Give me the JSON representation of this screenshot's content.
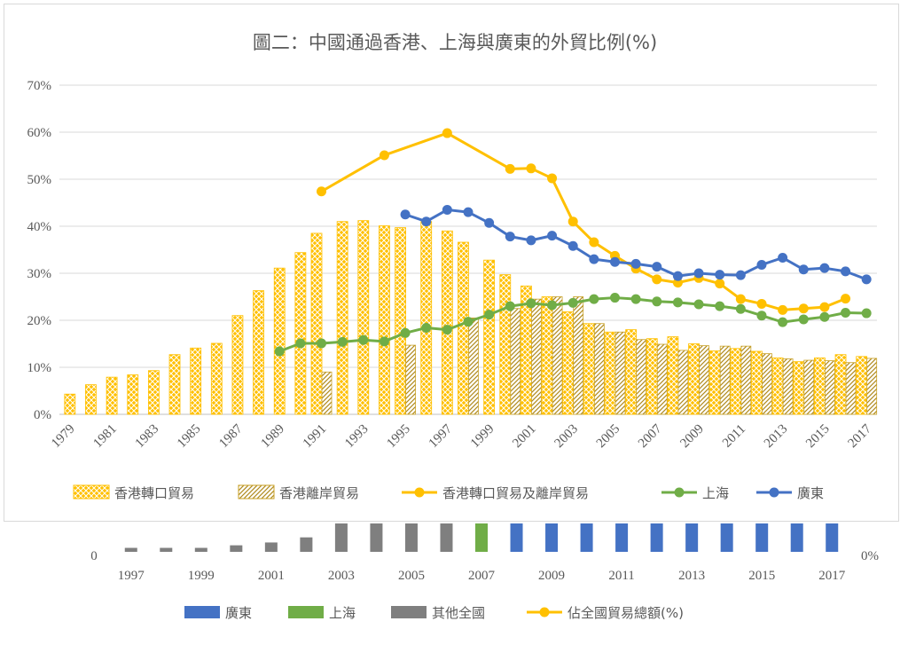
{
  "title": "圖二：中國通過香港、上海與廣東的外貿比例(%)",
  "chart_data": [
    {
      "type": "bar+line",
      "title": "圖二：中國通過香港、上海與廣東的外貿比例(%)",
      "ylim": [
        0,
        70
      ],
      "y_ticks": [
        "0%",
        "10%",
        "20%",
        "30%",
        "40%",
        "50%",
        "60%",
        "70%"
      ],
      "y_tick_values": [
        0,
        10,
        20,
        30,
        40,
        50,
        60,
        70
      ],
      "grid": true,
      "legend_position": "bottom",
      "categories": [
        1979,
        1980,
        1981,
        1982,
        1983,
        1984,
        1985,
        1986,
        1987,
        1988,
        1989,
        1990,
        1991,
        1992,
        1993,
        1994,
        1995,
        1996,
        1997,
        1998,
        1999,
        2000,
        2001,
        2002,
        2003,
        2004,
        2005,
        2006,
        2007,
        2008,
        2009,
        2010,
        2011,
        2012,
        2013,
        2014,
        2015,
        2016,
        2017
      ],
      "x_tick_labels": [
        "1979",
        "1981",
        "1983",
        "1985",
        "1987",
        "1989",
        "1991",
        "1993",
        "1995",
        "1997",
        "1999",
        "2001",
        "2003",
        "2005",
        "2007",
        "2009",
        "2011",
        "2013",
        "2015",
        "2017"
      ],
      "series": [
        {
          "name": "香港轉口貿易",
          "kind": "bar",
          "color": "#FFC000",
          "values": [
            4.3,
            6.3,
            7.9,
            8.4,
            9.3,
            12.7,
            14.1,
            15.1,
            21.0,
            26.3,
            31.1,
            34.4,
            38.5,
            41.0,
            41.2,
            40.1,
            39.7,
            41.0,
            39.0,
            36.6,
            32.8,
            29.7,
            27.3,
            25.0,
            21.8,
            19.3,
            17.5,
            18.0,
            16.1,
            16.5,
            15.0,
            13.5,
            14.0,
            13.4,
            12.0,
            11.2,
            12.0,
            12.7,
            12.3
          ]
        },
        {
          "name": "香港離岸貿易",
          "kind": "bar",
          "color": "#C9A227",
          "values": [
            null,
            null,
            null,
            null,
            null,
            null,
            null,
            null,
            null,
            null,
            null,
            null,
            9.0,
            null,
            null,
            null,
            14.7,
            null,
            null,
            20.5,
            null,
            22.5,
            24.5,
            25.0,
            25.0,
            19.3,
            17.5,
            15.9,
            14.9,
            13.6,
            14.6,
            14.5,
            14.5,
            12.9,
            11.8,
            11.5,
            11.4,
            11.0,
            11.9
          ]
        },
        {
          "name": "香港轉口貿易及離岸貿易",
          "kind": "line",
          "color": "#FFC000",
          "x": [
            1991,
            1994,
            1997,
            2000,
            2001,
            2002,
            2003,
            2004,
            2005,
            2006,
            2007,
            2008,
            2009,
            2010,
            2011,
            2012,
            2013,
            2014,
            2015,
            2016
          ],
          "values": [
            47.4,
            55.1,
            59.8,
            52.2,
            52.3,
            50.2,
            41.0,
            36.6,
            33.7,
            31.0,
            28.7,
            28.0,
            29.0,
            27.8,
            24.5,
            23.5,
            22.2,
            22.5,
            22.8,
            24.6
          ]
        },
        {
          "name": "上海",
          "kind": "line",
          "color": "#70AD47",
          "x": [
            1989,
            1990,
            1991,
            1992,
            1993,
            1994,
            1995,
            1996,
            1997,
            1998,
            1999,
            2000,
            2001,
            2002,
            2003,
            2004,
            2005,
            2006,
            2007,
            2008,
            2009,
            2010,
            2011,
            2012,
            2013,
            2014,
            2015,
            2016,
            2017
          ],
          "values": [
            13.4,
            15.1,
            15.1,
            15.4,
            15.8,
            15.5,
            17.3,
            18.4,
            18.0,
            19.7,
            21.2,
            23.0,
            23.6,
            23.2,
            23.7,
            24.5,
            24.8,
            24.5,
            24.0,
            23.8,
            23.4,
            23.0,
            22.4,
            21.0,
            19.6,
            20.2,
            20.7,
            21.6,
            21.5
          ]
        },
        {
          "name": "廣東",
          "kind": "line",
          "color": "#4472C4",
          "x": [
            1995,
            1996,
            1997,
            1998,
            1999,
            2000,
            2001,
            2002,
            2003,
            2004,
            2005,
            2006,
            2007,
            2008,
            2009,
            2010,
            2011,
            2012,
            2013,
            2014,
            2015,
            2016,
            2017
          ],
          "values": [
            42.5,
            41.0,
            43.5,
            43.0,
            40.7,
            37.8,
            37.0,
            38.0,
            35.8,
            33.0,
            32.4,
            32.0,
            31.4,
            29.4,
            30.0,
            29.7,
            29.6,
            31.8,
            33.3,
            30.8,
            31.1,
            30.4,
            28.7
          ]
        }
      ]
    },
    {
      "type": "bar",
      "categories": [
        1997,
        1998,
        1999,
        2000,
        2001,
        2002,
        2003,
        2004,
        2005,
        2006,
        2007,
        2008,
        2009,
        2010,
        2011,
        2012,
        2013,
        2014,
        2015,
        2016,
        2017
      ],
      "x_tick_labels": [
        "1997",
        "1999",
        "2001",
        "2003",
        "2005",
        "2007",
        "2009",
        "2011",
        "2013",
        "2015",
        "2017"
      ],
      "left_axis_label": "0",
      "right_axis_label": "0%",
      "bar_groups": [
        "其他全國",
        "其他全國",
        "其他全國",
        "其他全國",
        "其他全國",
        "其他全國",
        "其他全國",
        "其他全國",
        "其他全國",
        "其他全國",
        "上海",
        "廣東",
        "廣東",
        "廣東",
        "廣東",
        "廣東",
        "廣東",
        "廣東",
        "廣東",
        "廣東",
        "廣東"
      ],
      "values": [
        0.14,
        0.14,
        0.14,
        0.23,
        0.33,
        0.51,
        1,
        1,
        1,
        1,
        1,
        1,
        1,
        1,
        1,
        1,
        1,
        1,
        1,
        1,
        1
      ],
      "colors": {
        "廣東": "#4472C4",
        "上海": "#70AD47",
        "其他全國": "#7F7F7F",
        "佔全國貿易總額(%)": "#FFC000"
      },
      "legend": [
        "廣東",
        "上海",
        "其他全國",
        "佔全國貿易總額(%)"
      ],
      "legend_position": "bottom"
    }
  ]
}
